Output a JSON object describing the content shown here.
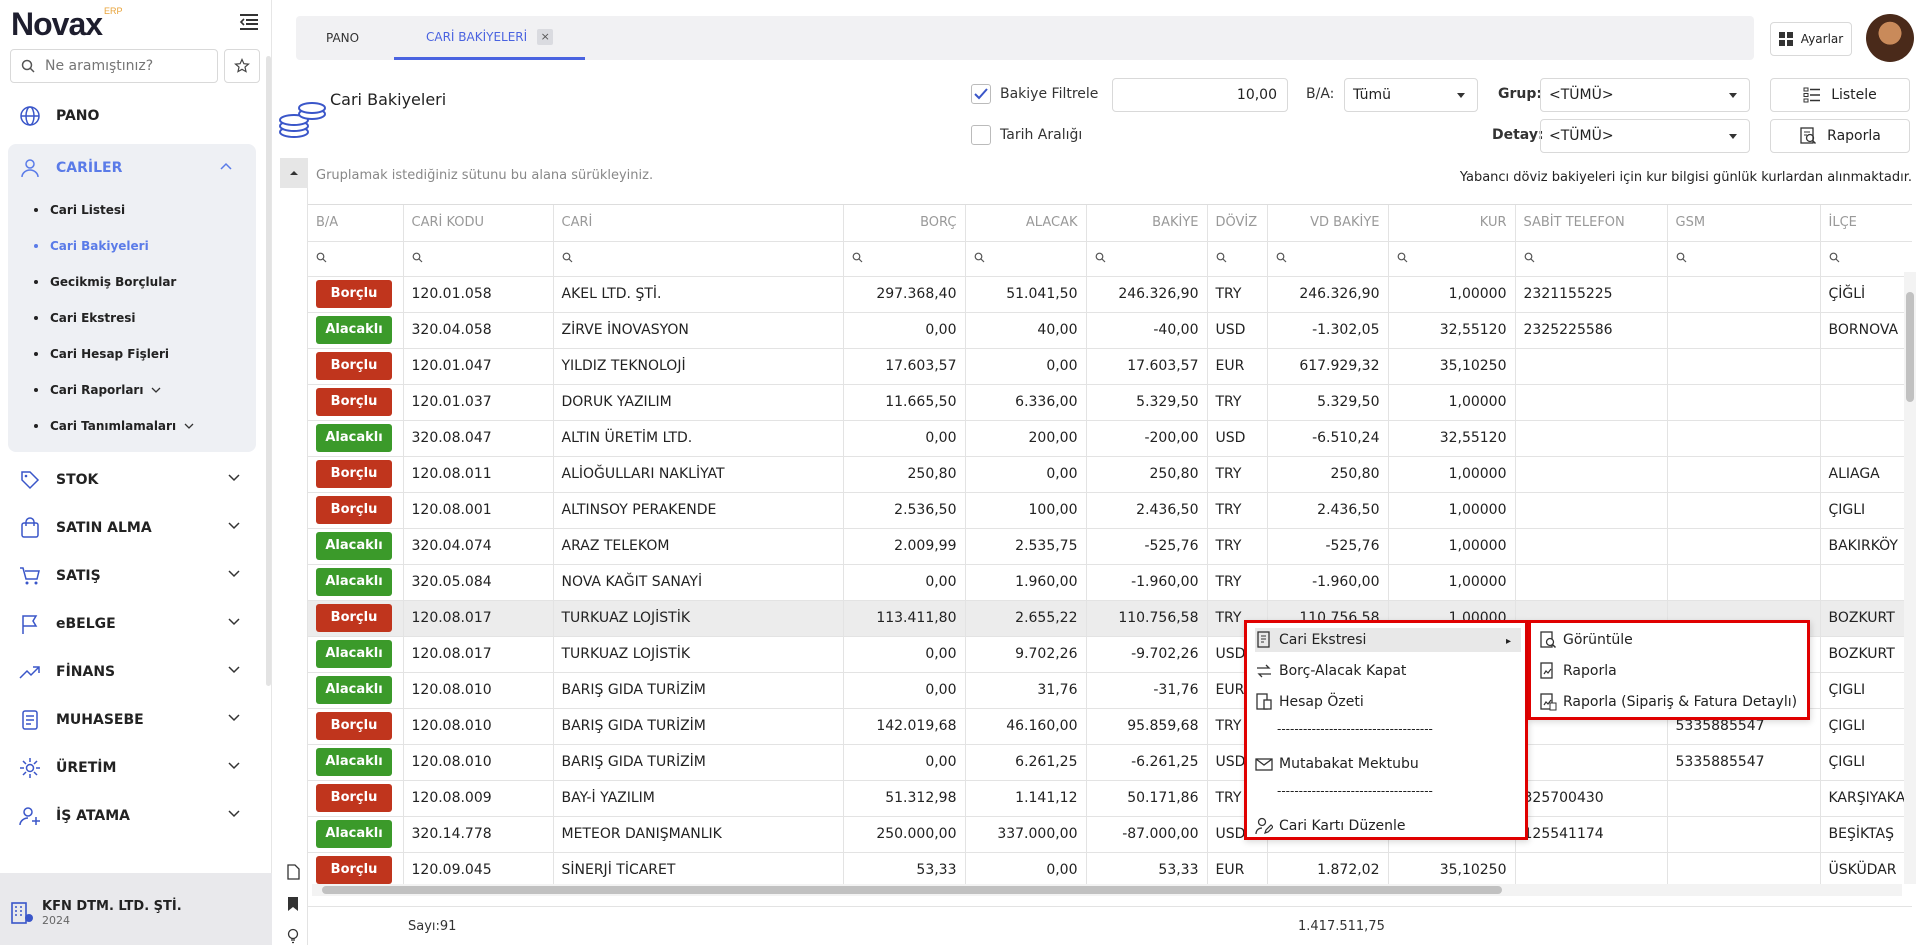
{
  "sidebar": {
    "logo": "Novax",
    "logo_badge": "ERP",
    "search_placeholder": "Ne aramıştınız?",
    "items": [
      {
        "label": "PANO",
        "icon": "globe-icon"
      },
      {
        "label": "CARİLER",
        "icon": "user-icon",
        "expanded": true
      },
      {
        "label": "STOK",
        "icon": "tag-icon"
      },
      {
        "label": "SATIN ALMA",
        "icon": "bag-icon"
      },
      {
        "label": "SATIŞ",
        "icon": "cart-icon"
      },
      {
        "label": "eBELGE",
        "icon": "flag-icon"
      },
      {
        "label": "FİNANS",
        "icon": "trend-icon"
      },
      {
        "label": "MUHASEBE",
        "icon": "document-icon"
      },
      {
        "label": "ÜRETİM",
        "icon": "gear-icon"
      },
      {
        "label": "İŞ ATAMA",
        "icon": "user-plus-icon"
      }
    ],
    "sub_items": [
      {
        "label": "Cari Listesi"
      },
      {
        "label": "Cari Bakiyeleri",
        "active": true
      },
      {
        "label": "Gecikmiş Borçlular"
      },
      {
        "label": "Cari Ekstresi"
      },
      {
        "label": "Cari Hesap Fişleri"
      },
      {
        "label": "Cari Raporları"
      },
      {
        "label": "Cari Tanımlamaları"
      }
    ],
    "company": {
      "name": "KFN DTM. LTD. ŞTİ.",
      "year": "2024"
    }
  },
  "tabs": [
    {
      "label": "PANO"
    },
    {
      "label": "CARİ BAKİYELERİ",
      "active": true,
      "close": "×"
    }
  ],
  "header": {
    "settings_label": "Ayarlar",
    "page_title": "Cari Bakiyeleri",
    "bakiye_filtrele_label": "Bakiye Filtrele",
    "bakiye_filtrele_checked": true,
    "bakiye_value": "10,00",
    "tarih_araligi_label": "Tarih Aralığı",
    "ba_label": "B/A:",
    "ba_value": "Tümü",
    "grup_label": "Grup:",
    "grup_value": "<TÜMÜ>",
    "detay_label": "Detay:",
    "detay_value": "<TÜMÜ>",
    "listele_label": "Listele",
    "raporla_label": "Raporla"
  },
  "grid": {
    "group_hint": "Gruplamak istediğiniz sütunu bu alana sürükleyiniz.",
    "fx_note": "Yabancı döviz bakiyeleri için kur bilgisi günlük kurlardan alınmaktadır.",
    "columns": [
      "B/A",
      "CARİ KODU",
      "CARİ",
      "BORÇ",
      "ALACAK",
      "BAKİYE",
      "DÖVİZ",
      "VD BAKİYE",
      "KUR",
      "SABİT TELEFON",
      "GSM",
      "İLÇE"
    ],
    "rows": [
      [
        "Borçlu",
        "120.01.058",
        "AKEL LTD. ŞTİ.",
        "297.368,40",
        "51.041,50",
        "246.326,90",
        "TRY",
        "246.326,90",
        "1,00000",
        "2321155225",
        "",
        "ÇİĞLİ"
      ],
      [
        "Alacaklı",
        "320.04.058",
        "ZİRVE İNOVASYON",
        "0,00",
        "40,00",
        "-40,00",
        "USD",
        "-1.302,05",
        "32,55120",
        "2325225586",
        "",
        "BORNOVA"
      ],
      [
        "Borçlu",
        "120.01.047",
        "YILDIZ TEKNOLOJİ",
        "17.603,57",
        "0,00",
        "17.603,57",
        "EUR",
        "617.929,32",
        "35,10250",
        "",
        "",
        ""
      ],
      [
        "Borçlu",
        "120.01.037",
        "DORUK YAZILIM",
        "11.665,50",
        "6.336,00",
        "5.329,50",
        "TRY",
        "5.329,50",
        "1,00000",
        "",
        "",
        ""
      ],
      [
        "Alacaklı",
        "320.08.047",
        "ALTIN ÜRETİM LTD.",
        "0,00",
        "200,00",
        "-200,00",
        "USD",
        "-6.510,24",
        "32,55120",
        "",
        "",
        ""
      ],
      [
        "Borçlu",
        "120.08.011",
        "ALİOĞULLARI NAKLİYAT",
        "250,80",
        "0,00",
        "250,80",
        "TRY",
        "250,80",
        "1,00000",
        "",
        "",
        "ALIAGA"
      ],
      [
        "Borçlu",
        "120.08.001",
        "ALTINSOY PERAKENDE",
        "2.536,50",
        "100,00",
        "2.436,50",
        "TRY",
        "2.436,50",
        "1,00000",
        "",
        "",
        "ÇIGLI"
      ],
      [
        "Alacaklı",
        "320.04.074",
        "ARAZ TELEKOM",
        "2.009,99",
        "2.535,75",
        "-525,76",
        "TRY",
        "-525,76",
        "1,00000",
        "",
        "",
        "BAKIRKÖY"
      ],
      [
        "Alacaklı",
        "320.05.084",
        "NOVA KAĞIT SANAYİ",
        "0,00",
        "1.960,00",
        "-1.960,00",
        "TRY",
        "-1.960,00",
        "1,00000",
        "",
        "",
        ""
      ],
      [
        "Borçlu",
        "120.08.017",
        "TURKUAZ LOJİSTİK",
        "113.411,80",
        "2.655,22",
        "110.756,58",
        "TRY",
        "110.756,58",
        "1,00000",
        "",
        "",
        "BOZKURT"
      ],
      [
        "Alacaklı",
        "120.08.017",
        "TURKUAZ LOJİSTİK",
        "0,00",
        "9.702,26",
        "-9.702,26",
        "USD",
        "",
        "",
        "",
        "",
        "BOZKURT"
      ],
      [
        "Alacaklı",
        "120.08.010",
        "BARIŞ GIDA TURİZİM",
        "0,00",
        "31,76",
        "-31,76",
        "EUR",
        "",
        "",
        "",
        "",
        "ÇIGLI"
      ],
      [
        "Borçlu",
        "120.08.010",
        "BARIŞ GIDA TURİZİM",
        "142.019,68",
        "46.160,00",
        "95.859,68",
        "TRY",
        "",
        "",
        "",
        "5335885547",
        "ÇIGLI"
      ],
      [
        "Alacaklı",
        "120.08.010",
        "BARIŞ GIDA TURİZİM",
        "0,00",
        "6.261,25",
        "-6.261,25",
        "USD",
        "",
        "",
        "",
        "5335885547",
        "ÇIGLI"
      ],
      [
        "Borçlu",
        "120.08.009",
        "BAY-İ YAZILIM",
        "51.312,98",
        "1.141,12",
        "50.171,86",
        "TRY",
        "",
        "",
        "325700430",
        "",
        "KARŞIYAKA"
      ],
      [
        "Alacaklı",
        "320.14.778",
        "METEOR DANIŞMANLIK",
        "250.000,00",
        "337.000,00",
        "-87.000,00",
        "USD",
        "",
        "",
        "125541174",
        "",
        "BEŞİKTAŞ"
      ],
      [
        "Borçlu",
        "120.09.045",
        "SİNERJİ TİCARET",
        "53,33",
        "0,00",
        "53,33",
        "EUR",
        "1.872,02",
        "35,10250",
        "",
        "",
        "ÜSKÜDAR"
      ]
    ],
    "footer_count": "Sayı:91",
    "footer_total": "1.417.511,75"
  },
  "context_menu": {
    "items": [
      {
        "label": "Cari Ekstresi",
        "icon": "statement-icon",
        "has_submenu": true
      },
      {
        "label": "Borç-Alacak Kapat",
        "icon": "exchange-icon"
      },
      {
        "label": "Hesap Özeti",
        "icon": "summary-icon"
      },
      {
        "label": "Mutabakat Mektubu",
        "icon": "mail-icon"
      },
      {
        "label": "Cari Kartı Düzenle",
        "icon": "user-edit-icon"
      }
    ],
    "separator": "------------------------------------",
    "submenu": [
      {
        "label": "Görüntüle",
        "icon": "view-report-icon"
      },
      {
        "label": "Raporla",
        "icon": "report-icon"
      },
      {
        "label": "Raporla (Sipariş & Fatura Detaylı)",
        "icon": "report-detail-icon"
      }
    ]
  }
}
